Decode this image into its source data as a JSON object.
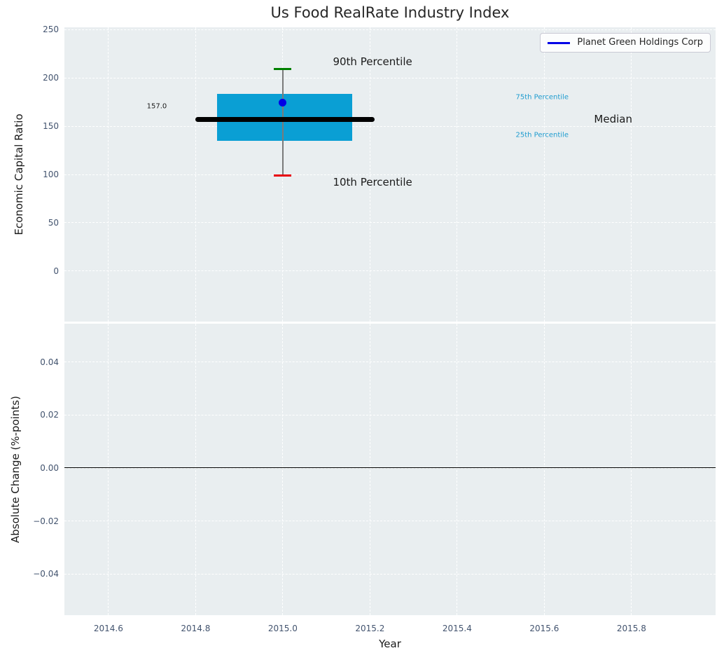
{
  "figure": {
    "title": "Us Food RealRate Industry Index"
  },
  "colors": {
    "plot_background": "#e9eef0",
    "grid": "#ffffff",
    "box_fill": "#0a9fd4",
    "median_line": "#000000",
    "whisker": "#7a7a7a",
    "p90_cap": "#008000",
    "p10_cap": "#e8000b",
    "company_marker": "#0000e6",
    "legend_line": "#0000e6",
    "tick_labels": "#42536e",
    "percentile_label_text": "#1f9ccf"
  },
  "chart_data": [
    {
      "type": "box",
      "title": "Us Food RealRate Industry Index",
      "ylabel": "Economic Capital Ratio",
      "ylim": [
        -52.2,
        252.2
      ],
      "xlim": [
        2014.499,
        2015.993
      ],
      "grid": "white-dashed",
      "legend": {
        "label": "Planet Green Holdings Corp",
        "position": "upper right"
      },
      "yticks": [
        {
          "v": 0,
          "label": "0"
        },
        {
          "v": 50,
          "label": "50"
        },
        {
          "v": 100,
          "label": "100"
        },
        {
          "v": 150,
          "label": "150"
        },
        {
          "v": 200,
          "label": "200"
        },
        {
          "v": 250,
          "label": "250"
        }
      ],
      "xticks": [
        {
          "v": 2014.6,
          "label": "2014.6"
        },
        {
          "v": 2014.8,
          "label": "2014.8"
        },
        {
          "v": 2015.0,
          "label": "2015.0"
        },
        {
          "v": 2015.2,
          "label": "2015.2"
        },
        {
          "v": 2015.4,
          "label": "2015.4"
        },
        {
          "v": 2015.6,
          "label": "2015.6"
        },
        {
          "v": 2015.8,
          "label": "2015.8"
        }
      ],
      "box": {
        "x_center": 2015.0,
        "box_x0": 2014.85,
        "box_x1": 2015.16,
        "p10": 99,
        "p25": 135,
        "median": 157,
        "p75": 183,
        "p90": 209,
        "company_value": 174,
        "median_line_x0": 2014.8,
        "median_line_x1": 2015.21,
        "cap_halfwidth": 0.02
      },
      "annotations": [
        {
          "text": "157.0",
          "x": 2014.711,
          "y": 170,
          "size": 10,
          "color": "#1a1a1a",
          "name": "median-value-annotation"
        },
        {
          "text": "90th Percentile",
          "x": 2015.206,
          "y": 216.5,
          "size": 15,
          "color": "#1a1a1a",
          "name": "p90-annotation"
        },
        {
          "text": "10th Percentile",
          "x": 2015.206,
          "y": 92,
          "size": 15,
          "color": "#1a1a1a",
          "name": "p10-annotation"
        },
        {
          "text": "75th Percentile",
          "x": 2015.595,
          "y": 180,
          "size": 10,
          "color": "#1f9ccf",
          "name": "p75-annotation"
        },
        {
          "text": "25th Percentile",
          "x": 2015.595,
          "y": 140.5,
          "size": 10,
          "color": "#1f9ccf",
          "name": "p25-annotation"
        },
        {
          "text": "Median",
          "x": 2015.758,
          "y": 157.3,
          "size": 15,
          "color": "#1a1a1a",
          "name": "median-annotation"
        }
      ]
    },
    {
      "type": "line",
      "ylabel": "Absolute Change (%-points)",
      "xlabel": "Year",
      "ylim": [
        -0.0555,
        0.0545
      ],
      "xlim": [
        2014.499,
        2015.993
      ],
      "grid": "white-dashed",
      "zero_line": 0.0,
      "yticks": [
        {
          "v": -0.04,
          "label": "−0.04"
        },
        {
          "v": -0.02,
          "label": "−0.02"
        },
        {
          "v": 0.0,
          "label": "0.00"
        },
        {
          "v": 0.02,
          "label": "0.02"
        },
        {
          "v": 0.04,
          "label": "0.04"
        }
      ],
      "xticks": [
        {
          "v": 2014.6,
          "label": "2014.6"
        },
        {
          "v": 2014.8,
          "label": "2014.8"
        },
        {
          "v": 2015.0,
          "label": "2015.0"
        },
        {
          "v": 2015.2,
          "label": "2015.2"
        },
        {
          "v": 2015.4,
          "label": "2015.4"
        },
        {
          "v": 2015.6,
          "label": "2015.6"
        },
        {
          "v": 2015.8,
          "label": "2015.8"
        }
      ]
    }
  ]
}
